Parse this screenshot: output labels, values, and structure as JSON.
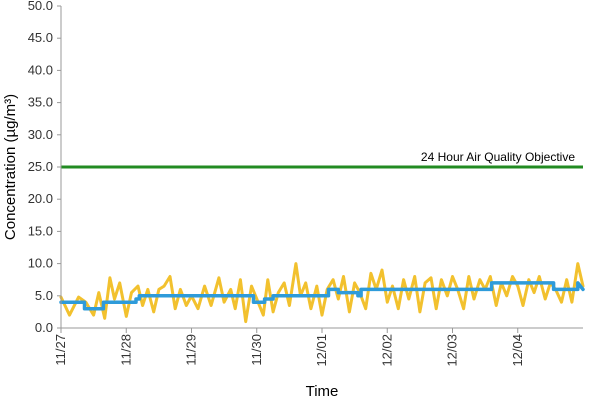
{
  "chart_data": {
    "type": "line",
    "xlabel": "Time",
    "ylabel": "Concentration (µg/m³)",
    "ylim": [
      0,
      50
    ],
    "yticks": [
      "0.0",
      "5.0",
      "10.0",
      "15.0",
      "20.0",
      "25.0",
      "30.0",
      "35.0",
      "40.0",
      "45.0",
      "50.0"
    ],
    "xticks": [
      "11/27",
      "11/28",
      "11/29",
      "11/30",
      "12/01",
      "12/02",
      "12/03",
      "12/04"
    ],
    "xlim_days": [
      0,
      8
    ],
    "grid": false,
    "legend": "none",
    "colors": {
      "objective": "#228B22",
      "hourly": "#F2C12E",
      "daily": "#2E9BDA",
      "axis": "#999999"
    },
    "objective": {
      "value": 25.0,
      "label": "24 Hour Air Quality Objective"
    },
    "series": [
      {
        "role": "hourly",
        "x": [
          0,
          0.13,
          0.27,
          0.38,
          0.5,
          0.58,
          0.67,
          0.75,
          0.82,
          0.9,
          1.0,
          1.08,
          1.18,
          1.25,
          1.33,
          1.42,
          1.5,
          1.58,
          1.67,
          1.75,
          1.83,
          1.92,
          2.0,
          2.1,
          2.2,
          2.3,
          2.42,
          2.5,
          2.6,
          2.67,
          2.75,
          2.83,
          2.92,
          3.0,
          3.1,
          3.17,
          3.25,
          3.33,
          3.42,
          3.5,
          3.6,
          3.67,
          3.75,
          3.83,
          3.92,
          4.0,
          4.08,
          4.17,
          4.25,
          4.33,
          4.42,
          4.5,
          4.58,
          4.67,
          4.75,
          4.83,
          4.92,
          5.0,
          5.08,
          5.17,
          5.25,
          5.33,
          5.42,
          5.5,
          5.58,
          5.67,
          5.75,
          5.83,
          5.92,
          6.0,
          6.08,
          6.17,
          6.25,
          6.33,
          6.42,
          6.5,
          6.58,
          6.67,
          6.75,
          6.83,
          6.92,
          7.0,
          7.08,
          7.17,
          7.25,
          7.33,
          7.42,
          7.5,
          7.58,
          7.67,
          7.75,
          7.83,
          7.92,
          8.0
        ],
        "values": [
          4.8,
          2.0,
          4.8,
          4.0,
          2.0,
          5.5,
          1.5,
          7.8,
          4.5,
          7.0,
          1.8,
          5.5,
          6.5,
          3.5,
          6.0,
          2.5,
          6.0,
          6.5,
          8.0,
          3.0,
          6.0,
          3.5,
          5.0,
          3.0,
          6.5,
          3.5,
          7.8,
          4.0,
          6.0,
          3.0,
          7.5,
          1.0,
          6.5,
          4.5,
          2.0,
          7.5,
          2.5,
          5.5,
          7.0,
          3.5,
          10.0,
          5.0,
          7.0,
          3.0,
          6.5,
          2.0,
          6.0,
          7.5,
          4.5,
          8.0,
          2.5,
          7.0,
          5.5,
          3.0,
          8.5,
          6.0,
          9.0,
          4.0,
          6.5,
          3.0,
          7.5,
          4.5,
          8.0,
          2.5,
          7.0,
          7.8,
          3.0,
          7.5,
          5.0,
          8.0,
          6.0,
          3.0,
          8.0,
          4.5,
          7.5,
          6.0,
          8.0,
          3.5,
          7.0,
          5.0,
          8.0,
          6.5,
          3.5,
          7.5,
          5.5,
          8.0,
          4.5,
          7.0,
          6.0,
          4.0,
          7.5,
          4.0,
          10.0,
          6.5
        ]
      },
      {
        "role": "daily",
        "x": [
          0,
          0.36,
          0.36,
          0.65,
          0.65,
          1.15,
          1.15,
          1.2,
          1.2,
          2.95,
          2.95,
          3.12,
          3.12,
          3.25,
          3.25,
          4.1,
          4.1,
          4.25,
          4.25,
          4.55,
          4.55,
          4.6,
          4.6,
          5.6,
          5.6,
          6.6,
          6.6,
          7.55,
          7.55,
          7.92,
          7.92,
          8.0
        ],
        "values": [
          4.0,
          4.0,
          3.0,
          3.0,
          4.0,
          4.0,
          4.5,
          4.5,
          5.0,
          5.0,
          4.0,
          4.0,
          4.5,
          4.5,
          5.0,
          5.0,
          6.0,
          6.0,
          5.5,
          5.5,
          5.0,
          5.0,
          6.0,
          6.0,
          6.0,
          6.0,
          7.0,
          7.0,
          6.0,
          6.0,
          7.0,
          6.0
        ]
      }
    ]
  }
}
